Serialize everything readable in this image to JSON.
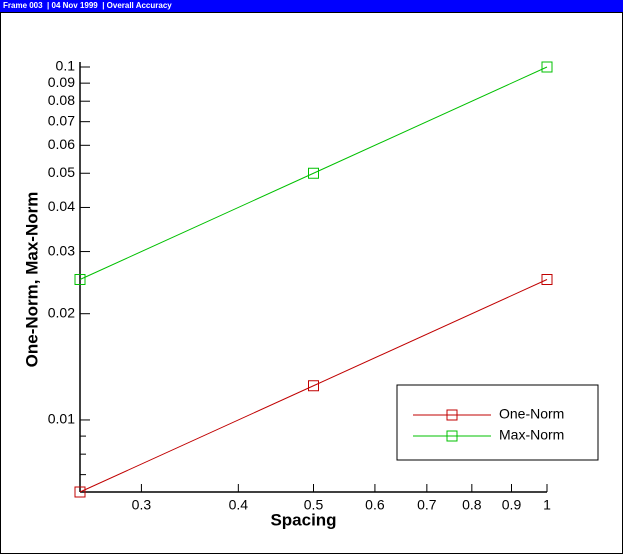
{
  "header": {
    "text": "Frame 003  | 04 Nov 1999  | Overall Accuracy"
  },
  "chart_data": {
    "type": "line",
    "xlabel": "Spacing",
    "ylabel": "One-Norm, Max-Norm",
    "xscale": "log",
    "yscale": "log",
    "x": [
      0.25,
      0.5,
      1
    ],
    "series": [
      {
        "name": "One-Norm",
        "color": "#c00000",
        "values": [
          0.00625,
          0.0125,
          0.025
        ]
      },
      {
        "name": "Max-Norm",
        "color": "#00c000",
        "values": [
          0.025,
          0.05,
          0.1
        ]
      }
    ],
    "xlim": [
      0.25,
      1
    ],
    "ylim": [
      0.00625,
      0.1
    ],
    "xticks": [
      0.3,
      0.4,
      0.5,
      0.6,
      0.7,
      0.8,
      0.9,
      1
    ],
    "yticks": [
      0.01,
      0.02,
      0.03,
      0.04,
      0.05,
      0.06,
      0.07,
      0.08,
      0.09,
      0.1
    ],
    "yminorticks": [
      0.007,
      0.008,
      0.009
    ],
    "marker": "square",
    "legend": "lower right"
  }
}
